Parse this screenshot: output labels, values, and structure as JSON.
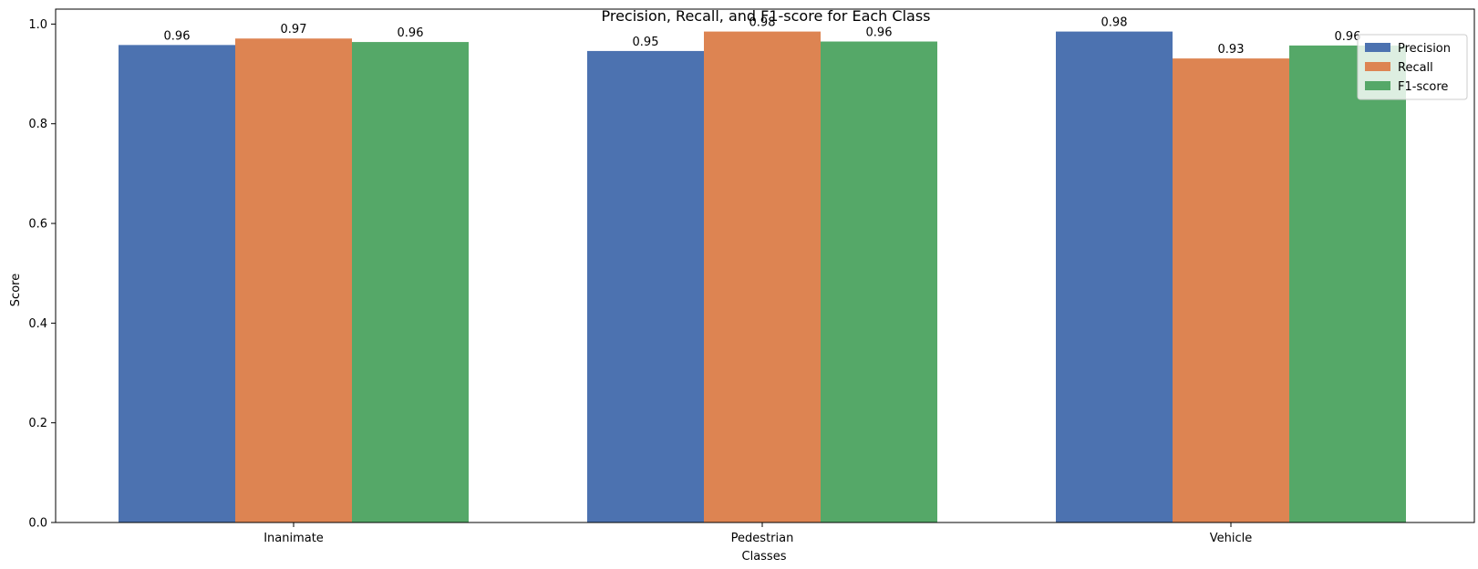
{
  "chart_data": {
    "type": "bar",
    "title": "Precision, Recall, and F1-score for Each Class",
    "xlabel": "Classes",
    "ylabel": "Score",
    "categories": [
      "Inanimate",
      "Pedestrian",
      "Vehicle"
    ],
    "series": [
      {
        "name": "Precision",
        "color": "#4c72b0",
        "values": [
          0.958,
          0.946,
          0.985
        ],
        "labels": [
          "0.96",
          "0.95",
          "0.98"
        ]
      },
      {
        "name": "Recall",
        "color": "#dd8452",
        "values": [
          0.971,
          0.985,
          0.931
        ],
        "labels": [
          "0.97",
          "0.98",
          "0.93"
        ]
      },
      {
        "name": "F1-score",
        "color": "#55a868",
        "values": [
          0.964,
          0.965,
          0.957
        ],
        "labels": [
          "0.96",
          "0.96",
          "0.96"
        ]
      }
    ],
    "ylim": [
      0,
      1.03
    ],
    "yticks": [
      "0.0",
      "0.2",
      "0.4",
      "0.6",
      "0.8",
      "1.0"
    ],
    "grid": false,
    "legend": "upper right"
  }
}
